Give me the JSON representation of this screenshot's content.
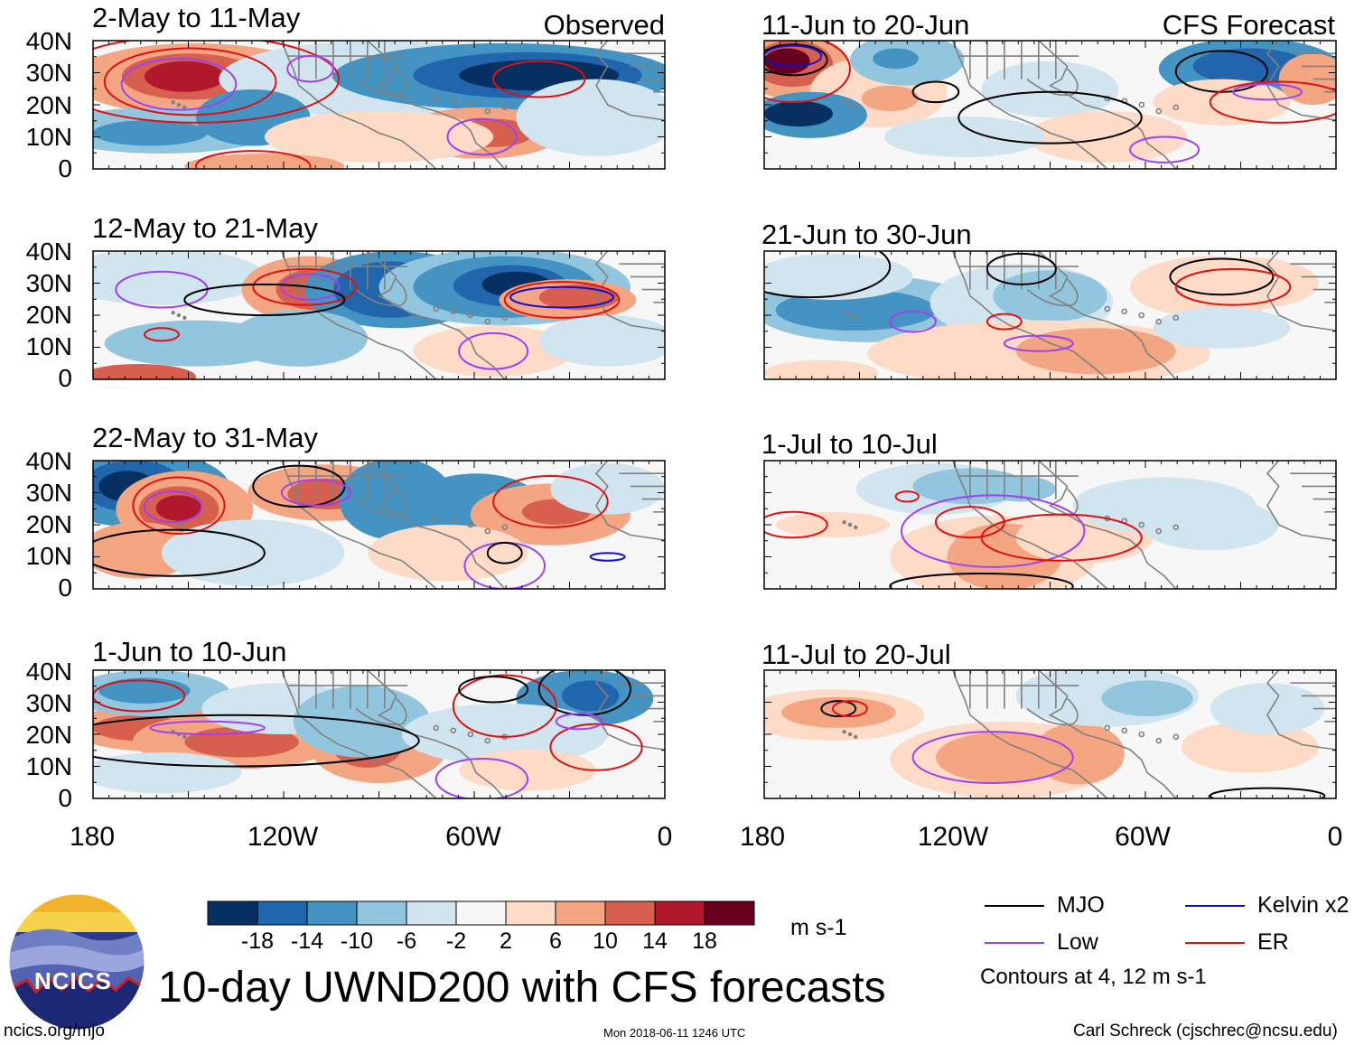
{
  "title": "10-day UWND200 with CFS forecasts",
  "units": "m s-1",
  "site": "ncics.org/mjo",
  "timestamp": "Mon 2018-06-11 1246 UTC",
  "author": "Carl Schreck (cjschrec@ncsu.edu)",
  "logo_text": "NCICS",
  "corner_labels": {
    "observed": "Observed",
    "forecast": "CFS Forecast"
  },
  "panels": {
    "observed": [
      "2-May to 11-May",
      "12-May to 21-May",
      "22-May to 31-May",
      "1-Jun to 10-Jun"
    ],
    "forecast": [
      "11-Jun to 20-Jun",
      "21-Jun to 30-Jun",
      "1-Jul to 10-Jul",
      "11-Jul to 20-Jul"
    ]
  },
  "lat_labels": [
    "40N",
    "30N",
    "20N",
    "10N",
    "0"
  ],
  "lon_labels": [
    "180",
    "120W",
    "60W",
    "0"
  ],
  "colorbar": {
    "colors": [
      "#053061",
      "#2166ac",
      "#4393c3",
      "#92c5de",
      "#d1e5f0",
      "#f7f7f7",
      "#fddbc7",
      "#f4a582",
      "#d6604d",
      "#b2182b",
      "#67001f"
    ],
    "labels": [
      "-18",
      "-14",
      "-10",
      "-6",
      "-2",
      "2",
      "6",
      "10",
      "14",
      "18"
    ]
  },
  "legend": {
    "items": [
      {
        "label": "MJO",
        "color": "#000000"
      },
      {
        "label": "Kelvin x2",
        "color": "#1010d0"
      },
      {
        "label": "Low",
        "color": "#a040f0"
      },
      {
        "label": "ER",
        "color": "#e01010"
      }
    ],
    "note": "Contours at 4, 12 m s-1"
  }
}
